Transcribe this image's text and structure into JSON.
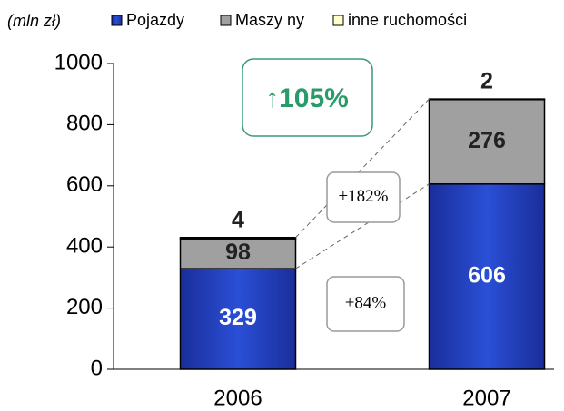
{
  "chart_data": {
    "type": "stacked-bar",
    "unit_label": "(mln zł)",
    "categories": [
      "2006",
      "2007"
    ],
    "series": [
      {
        "name": "Pojazdy",
        "color": "#2a4fd6",
        "values": [
          329,
          606
        ]
      },
      {
        "name": "Maszy ny",
        "color": "#a0a0a0",
        "values": [
          98,
          276
        ]
      },
      {
        "name": "inne ruchomości",
        "color": "#ffffcc",
        "values": [
          4,
          2
        ]
      }
    ],
    "ylim": [
      0,
      1000
    ],
    "yticks": [
      0,
      200,
      400,
      600,
      800,
      1000
    ],
    "annotations": [
      "↑105%",
      "+182%",
      "+84%"
    ]
  }
}
